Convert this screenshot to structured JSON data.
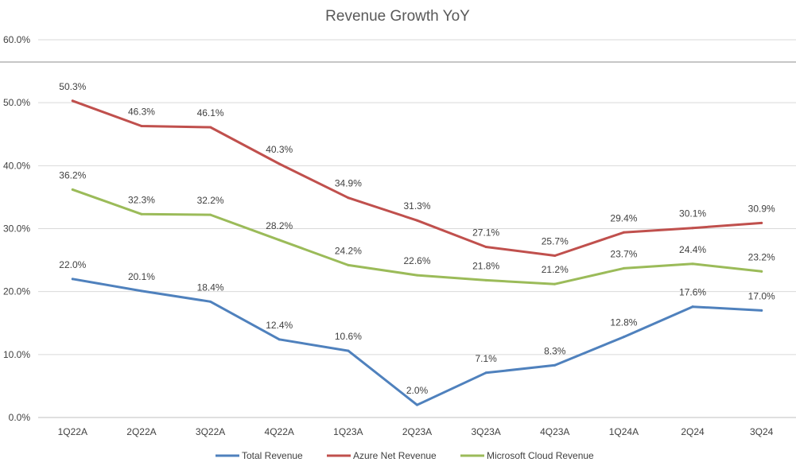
{
  "chart_data": {
    "type": "line",
    "title": "Revenue Growth YoY",
    "xlabel": "",
    "ylabel": "",
    "categories": [
      "1Q22A",
      "2Q22A",
      "3Q22A",
      "4Q22A",
      "1Q23A",
      "2Q23A",
      "3Q23A",
      "4Q23A",
      "1Q24A",
      "2Q24",
      "3Q24"
    ],
    "ylim": [
      0,
      60
    ],
    "yticks": [
      {
        "value": 0,
        "label": "0.0%"
      },
      {
        "value": 10,
        "label": "10.0%"
      },
      {
        "value": 20,
        "label": "20.0%"
      },
      {
        "value": 30,
        "label": "30.0%"
      },
      {
        "value": 40,
        "label": "40.0%"
      },
      {
        "value": 50,
        "label": "50.0%"
      },
      {
        "value": 60,
        "label": "60.0%"
      }
    ],
    "grid": "horizontal",
    "legend_position": "bottom",
    "series": [
      {
        "name": "Total Revenue",
        "color": "#4F81BD",
        "values": [
          22.0,
          20.1,
          18.4,
          12.4,
          10.6,
          2.0,
          7.1,
          8.3,
          12.8,
          17.6,
          17.0
        ],
        "labels": [
          "22.0%",
          "20.1%",
          "18.4%",
          "12.4%",
          "10.6%",
          "2.0%",
          "7.1%",
          "8.3%",
          "12.8%",
          "17.6%",
          "17.0%"
        ]
      },
      {
        "name": "Azure Net Revenue",
        "color": "#C0504D",
        "values": [
          50.3,
          46.3,
          46.1,
          40.3,
          34.9,
          31.3,
          27.1,
          25.7,
          29.4,
          30.1,
          30.9
        ],
        "labels": [
          "50.3%",
          "46.3%",
          "46.1%",
          "40.3%",
          "34.9%",
          "31.3%",
          "27.1%",
          "25.7%",
          "29.4%",
          "30.1%",
          "30.9%"
        ]
      },
      {
        "name": "Microsoft Cloud Revenue",
        "color": "#9BBB59",
        "values": [
          36.2,
          32.3,
          32.2,
          28.2,
          24.2,
          22.6,
          21.8,
          21.2,
          23.7,
          24.4,
          23.2
        ],
        "labels": [
          "36.2%",
          "32.3%",
          "32.2%",
          "28.2%",
          "24.2%",
          "22.6%",
          "21.8%",
          "21.2%",
          "23.7%",
          "24.4%",
          "23.2%"
        ]
      }
    ]
  }
}
